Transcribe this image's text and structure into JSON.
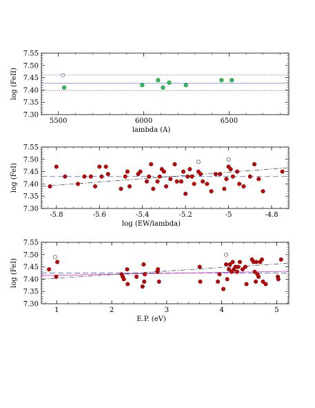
{
  "chart_data": [
    {
      "type": "scatter",
      "xlabel": "lambda (A)",
      "ylabel": "log (FeII)",
      "xlim": [
        5400,
        6850
      ],
      "ylim": [
        7.3,
        7.55
      ],
      "xticks": [
        5500,
        6000,
        6500
      ],
      "yticks": [
        7.3,
        7.35,
        7.4,
        7.45,
        7.5,
        7.55
      ],
      "mean_line": {
        "y": 7.428,
        "color": "#8899ee",
        "style": "solid"
      },
      "dotted_lines": [
        7.462,
        7.398
      ],
      "points_color": "#22cc55",
      "points": [
        {
          "x": 5534,
          "y": 7.41
        },
        {
          "x": 5991,
          "y": 7.42
        },
        {
          "x": 6084,
          "y": 7.44
        },
        {
          "x": 6113,
          "y": 7.41
        },
        {
          "x": 6149,
          "y": 7.43
        },
        {
          "x": 6247,
          "y": 7.42
        },
        {
          "x": 6456,
          "y": 7.44
        },
        {
          "x": 6516,
          "y": 7.44
        }
      ],
      "outliers": [
        {
          "x": 5526,
          "y": 7.46
        }
      ]
    },
    {
      "type": "scatter",
      "xlabel": "log (EW/lambda)",
      "ylabel": "log (FeI)",
      "xlim": [
        -5.87,
        -4.72
      ],
      "ylim": [
        7.3,
        7.55
      ],
      "xticks": [
        -5.8,
        -5.6,
        -5.4,
        -5.2,
        -5,
        -4.8
      ],
      "yticks": [
        7.3,
        7.35,
        7.4,
        7.45,
        7.5,
        7.55
      ],
      "mean_line": {
        "y": 7.43,
        "color": "#6677dd",
        "style": "dashed"
      },
      "fit_line": {
        "x": [
          -5.87,
          -4.72
        ],
        "y": [
          7.39,
          7.466
        ],
        "style": "dashdot"
      },
      "points_color": "#cc0000",
      "points": [
        {
          "x": -5.83,
          "y": 7.39
        },
        {
          "x": -5.8,
          "y": 7.47
        },
        {
          "x": -5.76,
          "y": 7.43
        },
        {
          "x": -5.7,
          "y": 7.4
        },
        {
          "x": -5.67,
          "y": 7.43
        },
        {
          "x": -5.64,
          "y": 7.43
        },
        {
          "x": -5.62,
          "y": 7.39
        },
        {
          "x": -5.6,
          "y": 7.47
        },
        {
          "x": -5.59,
          "y": 7.43
        },
        {
          "x": -5.57,
          "y": 7.47
        },
        {
          "x": -5.56,
          "y": 7.44
        },
        {
          "x": -5.5,
          "y": 7.38
        },
        {
          "x": -5.48,
          "y": 7.43
        },
        {
          "x": -5.47,
          "y": 7.45
        },
        {
          "x": -5.46,
          "y": 7.39
        },
        {
          "x": -5.42,
          "y": 7.44
        },
        {
          "x": -5.41,
          "y": 7.45
        },
        {
          "x": -5.38,
          "y": 7.41
        },
        {
          "x": -5.37,
          "y": 7.43
        },
        {
          "x": -5.36,
          "y": 7.48
        },
        {
          "x": -5.35,
          "y": 7.38
        },
        {
          "x": -5.33,
          "y": 7.41
        },
        {
          "x": -5.32,
          "y": 7.43
        },
        {
          "x": -5.31,
          "y": 7.46
        },
        {
          "x": -5.3,
          "y": 7.45
        },
        {
          "x": -5.29,
          "y": 7.39
        },
        {
          "x": -5.27,
          "y": 7.42
        },
        {
          "x": -5.25,
          "y": 7.48
        },
        {
          "x": -5.24,
          "y": 7.41
        },
        {
          "x": -5.22,
          "y": 7.41
        },
        {
          "x": -5.21,
          "y": 7.45
        },
        {
          "x": -5.2,
          "y": 7.36
        },
        {
          "x": -5.19,
          "y": 7.43
        },
        {
          "x": -5.18,
          "y": 7.46
        },
        {
          "x": -5.17,
          "y": 7.43
        },
        {
          "x": -5.16,
          "y": 7.4
        },
        {
          "x": -5.14,
          "y": 7.45
        },
        {
          "x": -5.13,
          "y": 7.44
        },
        {
          "x": -5.12,
          "y": 7.41
        },
        {
          "x": -5.1,
          "y": 7.4
        },
        {
          "x": -5.08,
          "y": 7.37
        },
        {
          "x": -5.06,
          "y": 7.44
        },
        {
          "x": -5.04,
          "y": 7.44
        },
        {
          "x": -5.02,
          "y": 7.38
        },
        {
          "x": -5.01,
          "y": 7.42
        },
        {
          "x": -5.0,
          "y": 7.47
        },
        {
          "x": -4.99,
          "y": 7.46
        },
        {
          "x": -4.98,
          "y": 7.43
        },
        {
          "x": -4.96,
          "y": 7.45
        },
        {
          "x": -4.95,
          "y": 7.4
        },
        {
          "x": -4.93,
          "y": 7.39
        },
        {
          "x": -4.9,
          "y": 7.43
        },
        {
          "x": -4.88,
          "y": 7.48
        },
        {
          "x": -4.86,
          "y": 7.42
        },
        {
          "x": -4.84,
          "y": 7.37
        },
        {
          "x": -4.75,
          "y": 7.45
        }
      ],
      "outliers": [
        {
          "x": -5.14,
          "y": 7.49
        },
        {
          "x": -5.0,
          "y": 7.5
        }
      ]
    },
    {
      "type": "scatter",
      "xlabel": "E.P. (eV)",
      "ylabel": "log (FeI)",
      "xlim": [
        0.72,
        5.22
      ],
      "ylim": [
        7.3,
        7.55
      ],
      "xticks": [
        1,
        2,
        3,
        4,
        5
      ],
      "yticks": [
        7.3,
        7.35,
        7.4,
        7.45,
        7.5,
        7.55
      ],
      "mean_line": {
        "y": 7.425,
        "color": "#6677dd",
        "style": "dashed"
      },
      "fit_line": {
        "x": [
          0.72,
          5.22
        ],
        "y": [
          7.4,
          7.465
        ],
        "style": "dashdot"
      },
      "magenta_line": {
        "x": [
          0.72,
          5.22
        ],
        "y": [
          7.415,
          7.432
        ]
      },
      "points_color": "#cc0000",
      "points": [
        {
          "x": 0.86,
          "y": 7.44
        },
        {
          "x": 0.99,
          "y": 7.41
        },
        {
          "x": 1.01,
          "y": 7.47
        },
        {
          "x": 2.18,
          "y": 7.42
        },
        {
          "x": 2.2,
          "y": 7.41
        },
        {
          "x": 2.22,
          "y": 7.4
        },
        {
          "x": 2.28,
          "y": 7.44
        },
        {
          "x": 2.29,
          "y": 7.38
        },
        {
          "x": 2.45,
          "y": 7.41
        },
        {
          "x": 2.56,
          "y": 7.37
        },
        {
          "x": 2.58,
          "y": 7.46
        },
        {
          "x": 2.59,
          "y": 7.39
        },
        {
          "x": 2.6,
          "y": 7.42
        },
        {
          "x": 2.83,
          "y": 7.43
        },
        {
          "x": 2.84,
          "y": 7.44
        },
        {
          "x": 2.86,
          "y": 7.39
        },
        {
          "x": 3.6,
          "y": 7.45
        },
        {
          "x": 3.61,
          "y": 7.39
        },
        {
          "x": 3.93,
          "y": 7.39
        },
        {
          "x": 3.96,
          "y": 7.42
        },
        {
          "x": 4.03,
          "y": 7.36
        },
        {
          "x": 4.08,
          "y": 7.46
        },
        {
          "x": 4.1,
          "y": 7.4
        },
        {
          "x": 4.13,
          "y": 7.44
        },
        {
          "x": 4.15,
          "y": 7.46
        },
        {
          "x": 4.18,
          "y": 7.43
        },
        {
          "x": 4.2,
          "y": 7.47
        },
        {
          "x": 4.22,
          "y": 7.44
        },
        {
          "x": 4.25,
          "y": 7.45
        },
        {
          "x": 4.28,
          "y": 7.43
        },
        {
          "x": 4.3,
          "y": 7.45
        },
        {
          "x": 4.33,
          "y": 7.47
        },
        {
          "x": 4.38,
          "y": 7.44
        },
        {
          "x": 4.43,
          "y": 7.45
        },
        {
          "x": 4.45,
          "y": 7.38
        },
        {
          "x": 4.55,
          "y": 7.48
        },
        {
          "x": 4.58,
          "y": 7.47
        },
        {
          "x": 4.6,
          "y": 7.43
        },
        {
          "x": 4.62,
          "y": 7.39
        },
        {
          "x": 4.63,
          "y": 7.47
        },
        {
          "x": 4.65,
          "y": 7.42
        },
        {
          "x": 4.67,
          "y": 7.41
        },
        {
          "x": 4.7,
          "y": 7.47
        },
        {
          "x": 4.73,
          "y": 7.48
        },
        {
          "x": 4.75,
          "y": 7.39
        },
        {
          "x": 4.8,
          "y": 7.38
        },
        {
          "x": 5.02,
          "y": 7.41
        },
        {
          "x": 5.03,
          "y": 7.4
        },
        {
          "x": 5.08,
          "y": 7.48
        }
      ],
      "outliers": [
        {
          "x": 0.97,
          "y": 7.49
        },
        {
          "x": 4.08,
          "y": 7.5
        }
      ]
    }
  ]
}
